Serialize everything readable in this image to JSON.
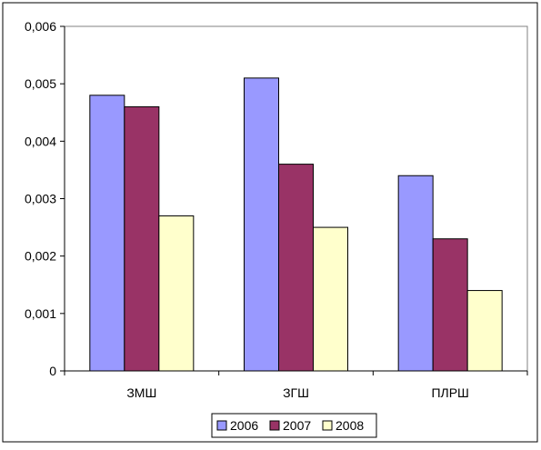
{
  "chart_data": {
    "type": "bar",
    "categories": [
      "ЗМШ",
      "ЗГШ",
      "ПЛРШ"
    ],
    "series": [
      {
        "name": "2006",
        "values": [
          0.0048,
          0.0051,
          0.0034
        ],
        "color": "#9999ff"
      },
      {
        "name": "2007",
        "values": [
          0.0046,
          0.0036,
          0.0023
        ],
        "color": "#993366"
      },
      {
        "name": "2008",
        "values": [
          0.0027,
          0.0025,
          0.0014
        ],
        "color": "#ffffcc"
      }
    ],
    "ylim": [
      0,
      0.006
    ],
    "yticks": [
      0,
      0.001,
      0.002,
      0.003,
      0.004,
      0.005,
      0.006
    ],
    "ytick_labels": [
      "0",
      "0,001",
      "0,002",
      "0,003",
      "0,004",
      "0,005",
      "0,006"
    ],
    "title": "",
    "xlabel": "",
    "ylabel": "",
    "grid": false,
    "legend_position": "bottom"
  }
}
